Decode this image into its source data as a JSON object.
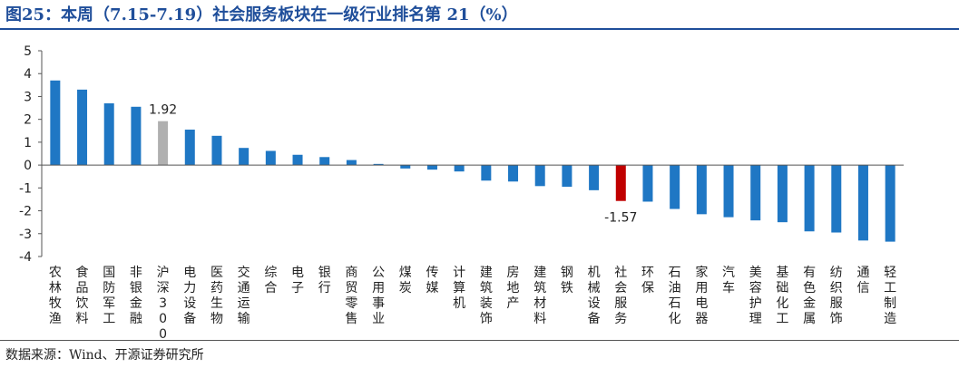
{
  "header": {
    "title": "图25：本周（7.15-7.19）社会服务板块在一级行业排名第 21（%）"
  },
  "footer": {
    "source": "数据来源：Wind、开源证券研究所"
  },
  "colors": {
    "default_bar": "#1f77c4",
    "highlight_benchmark": "#b0b0b0",
    "highlight_target": "#c00000"
  },
  "chart_data": {
    "type": "bar",
    "title": "",
    "xlabel": "",
    "ylabel": "",
    "ylim": [
      -4,
      5
    ],
    "yticks": [
      -4,
      -3,
      -2,
      -1,
      0,
      1,
      2,
      3,
      4,
      5
    ],
    "grid": false,
    "legend": "none",
    "categories": [
      "农林牧渔",
      "食品饮料",
      "国防军工",
      "非银金融",
      "沪深300",
      "电力设备",
      "医药生物",
      "交通运输",
      "综合",
      "电子",
      "银行",
      "商贸零售",
      "公用事业",
      "煤炭",
      "传媒",
      "计算机",
      "建筑装饰",
      "房地产",
      "建筑材料",
      "钢铁",
      "机械设备",
      "社会服务",
      "环保",
      "石油石化",
      "家用电器",
      "汽车",
      "美容护理",
      "基础化工",
      "有色金属",
      "纺织服饰",
      "通信",
      "轻工制造"
    ],
    "values": [
      3.7,
      3.3,
      2.7,
      2.55,
      1.92,
      1.55,
      1.28,
      0.75,
      0.62,
      0.45,
      0.35,
      0.22,
      0.05,
      -0.15,
      -0.2,
      -0.28,
      -0.68,
      -0.72,
      -0.92,
      -0.95,
      -1.1,
      -1.57,
      -1.6,
      -1.92,
      -2.15,
      -2.28,
      -2.42,
      -2.5,
      -2.9,
      -2.95,
      -3.3,
      -3.35
    ],
    "highlights": {
      "沪深300": "benchmark",
      "社会服务": "target"
    },
    "data_labels": [
      {
        "category": "沪深300",
        "text": "1.92"
      },
      {
        "category": "社会服务",
        "text": "-1.57"
      }
    ]
  }
}
